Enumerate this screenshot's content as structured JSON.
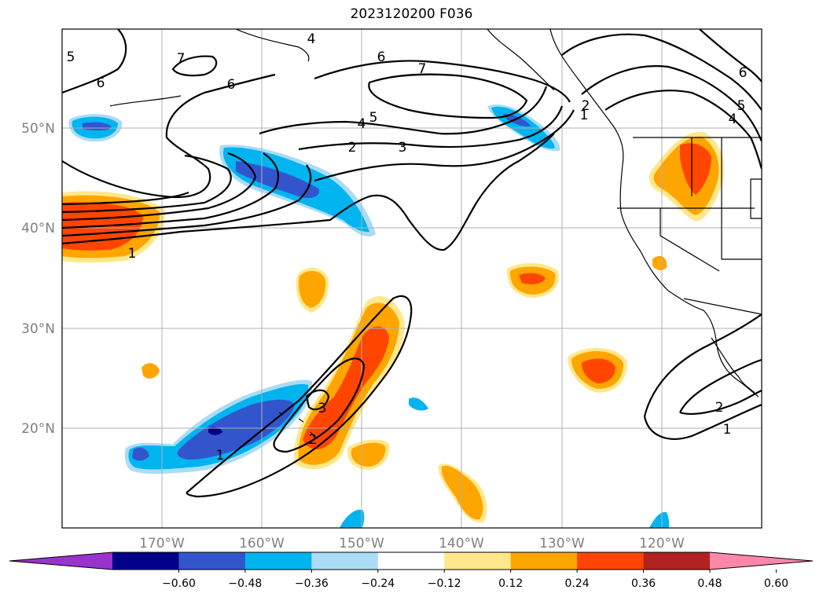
{
  "title": "2023120200 F036",
  "lat_labels": [
    "50°N",
    "40°N",
    "30°N",
    "20°N"
  ],
  "lon_labels": [
    "170°W",
    "160°W",
    "150°W",
    "140°W",
    "130°W",
    "120°W"
  ],
  "colorbar": {
    "ticks": [
      "−0.60",
      "−0.48",
      "−0.36",
      "−0.24",
      "−0.12",
      "0.12",
      "0.24",
      "0.36",
      "0.48",
      "0.60"
    ],
    "colors": [
      "#9933cc",
      "#00008b",
      "#3355cc",
      "#00b4f0",
      "#aadcf5",
      "#ffffff",
      "#ffe88c",
      "#ffa500",
      "#ff4500",
      "#b22222",
      "#ff88aa"
    ]
  },
  "contour_labels": [
    "5",
    "7",
    "6",
    "6",
    "4",
    "6",
    "7",
    "2",
    "4",
    "5",
    "3",
    "1",
    "6",
    "5",
    "4",
    "3",
    "2",
    "1",
    "1",
    "2",
    "2",
    "1"
  ]
}
